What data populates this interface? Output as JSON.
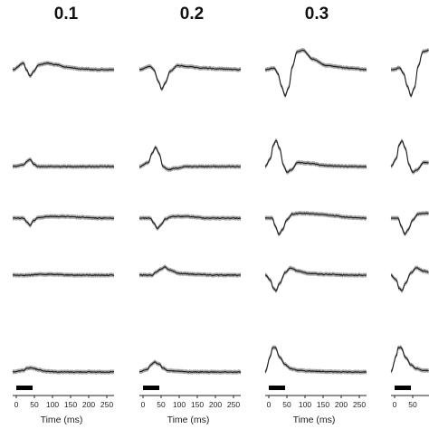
{
  "chart_data": {
    "type": "line",
    "panel_titles": [
      "0.1",
      "0.2",
      "0.3"
    ],
    "x_axis": {
      "label": "Time (ms)",
      "ticks": [
        0,
        50,
        100,
        150,
        200,
        250
      ],
      "xlim": [
        -10,
        270
      ],
      "stimulus_bar_ms": [
        0,
        45
      ]
    },
    "rows": 5,
    "shaded_band": true,
    "colors": {
      "trace": "#1a1a1a",
      "band": "#8c8c8c",
      "stim_bar": "#000000"
    },
    "traces": [
      [
        {
          "x": [
            -10,
            20,
            28,
            38,
            48,
            62,
            85,
            110,
            140,
            180,
            220,
            270
          ],
          "y": [
            0,
            0.8,
            0,
            -0.8,
            -0.2,
            0.6,
            0.8,
            0.6,
            0.3,
            0.1,
            0,
            0
          ]
        },
        {
          "x": [
            -10,
            20,
            30,
            38,
            48,
            60,
            80,
            120,
            180,
            270
          ],
          "y": [
            0,
            0.2,
            0.6,
            0.9,
            0.3,
            0,
            0,
            0,
            0,
            0
          ]
        },
        {
          "x": [
            -10,
            20,
            30,
            38,
            48,
            62,
            90,
            130,
            180,
            220,
            270
          ],
          "y": [
            0,
            0,
            -0.5,
            -0.9,
            -0.3,
            0.1,
            0.2,
            0.2,
            0.1,
            0,
            0
          ]
        },
        {
          "x": [
            -10,
            40,
            60,
            100,
            150,
            200,
            270
          ],
          "y": [
            0,
            0,
            0.1,
            0.1,
            0,
            0,
            0
          ]
        },
        {
          "x": [
            -10,
            20,
            32,
            45,
            60,
            80,
            120,
            200,
            270
          ],
          "y": [
            0,
            0.2,
            0.5,
            0.5,
            0.3,
            0.1,
            0,
            0,
            0
          ]
        }
      ],
      [
        {
          "x": [
            -10,
            20,
            30,
            42,
            52,
            62,
            75,
            95,
            120,
            160,
            210,
            270
          ],
          "y": [
            0,
            0.4,
            0,
            -1.4,
            -2.4,
            -1.6,
            -0.2,
            0.5,
            0.4,
            0.2,
            0.1,
            0
          ]
        },
        {
          "x": [
            -10,
            15,
            25,
            35,
            45,
            55,
            70,
            90,
            120,
            170,
            220,
            270
          ],
          "y": [
            0,
            0.5,
            1.6,
            2.4,
            1.5,
            0,
            -0.4,
            -0.2,
            0,
            0,
            0,
            0
          ]
        },
        {
          "x": [
            -10,
            20,
            30,
            40,
            50,
            62,
            80,
            120,
            180,
            270
          ],
          "y": [
            0,
            0,
            -0.6,
            -1.3,
            -0.8,
            -0.1,
            0.2,
            0.2,
            0,
            0
          ]
        },
        {
          "x": [
            -10,
            25,
            35,
            48,
            60,
            75,
            100,
            150,
            200,
            270
          ],
          "y": [
            0,
            0,
            0.3,
            0.7,
            1.0,
            0.6,
            0.2,
            0.1,
            0,
            0
          ]
        },
        {
          "x": [
            -10,
            12,
            22,
            32,
            44,
            55,
            68,
            90,
            130,
            200,
            270
          ],
          "y": [
            0,
            0.3,
            0.9,
            1.2,
            1.0,
            0.5,
            0.2,
            0.1,
            0,
            0,
            0
          ]
        }
      ],
      [
        {
          "x": [
            -10,
            15,
            25,
            35,
            45,
            55,
            65,
            78,
            95,
            120,
            160,
            220,
            270
          ],
          "y": [
            0,
            0.2,
            -0.5,
            -2.0,
            -3.2,
            -2.2,
            0.4,
            2.2,
            2.4,
            1.3,
            0.5,
            0.2,
            0
          ]
        },
        {
          "x": [
            -10,
            5,
            12,
            20,
            30,
            40,
            50,
            62,
            80,
            110,
            160,
            220,
            270
          ],
          "y": [
            0,
            1.0,
            2.6,
            3.2,
            2.2,
            0.2,
            -0.7,
            -0.4,
            0.5,
            0.4,
            0.1,
            0,
            0
          ]
        },
        {
          "x": [
            -10,
            10,
            18,
            28,
            38,
            50,
            65,
            90,
            130,
            180,
            220,
            270
          ],
          "y": [
            0,
            0,
            -1.0,
            -2.0,
            -1.4,
            -0.2,
            0.5,
            0.6,
            0.5,
            0.3,
            0.1,
            0
          ]
        },
        {
          "x": [
            -10,
            5,
            12,
            20,
            30,
            45,
            60,
            80,
            110,
            160,
            220,
            270
          ],
          "y": [
            0,
            -0.6,
            -1.6,
            -1.9,
            -1.0,
            0.3,
            0.9,
            0.5,
            0.2,
            0.1,
            0,
            0
          ]
        },
        {
          "x": [
            -10,
            5,
            10,
            18,
            30,
            45,
            60,
            80,
            120,
            200,
            270
          ],
          "y": [
            0,
            2.0,
            3.0,
            3.0,
            1.8,
            0.9,
            0.4,
            0.2,
            0.1,
            0,
            0
          ]
        }
      ]
    ]
  }
}
